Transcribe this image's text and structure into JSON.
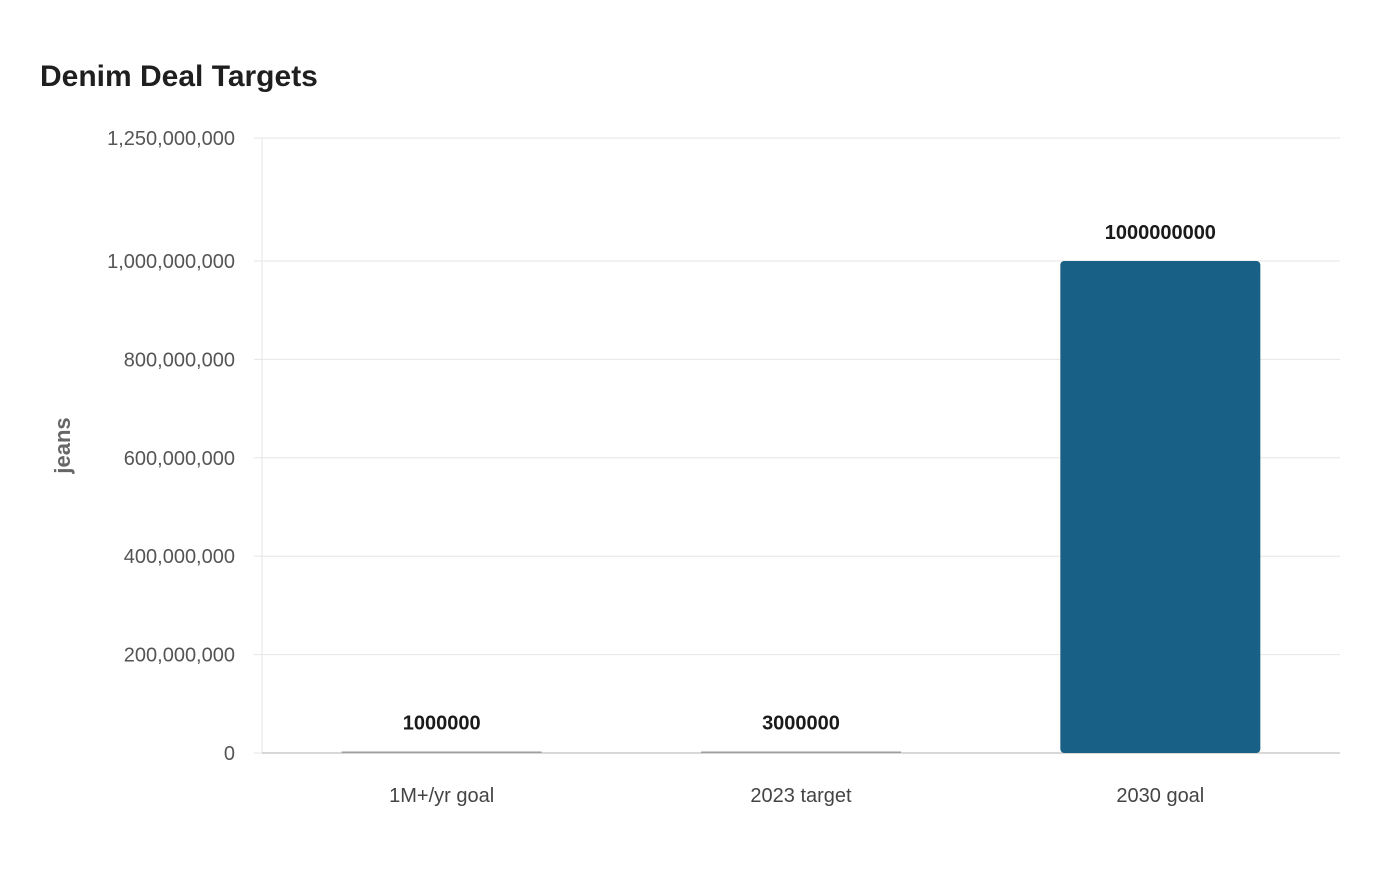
{
  "chart_data": {
    "type": "bar",
    "title": "Denim Deal Targets",
    "xlabel": "",
    "ylabel": "jeans",
    "categories": [
      "1M+/yr goal",
      "2023 target",
      "2030 goal"
    ],
    "values": [
      1000000,
      3000000,
      1000000000
    ],
    "data_labels": [
      "1000000",
      "3000000",
      "1000000000"
    ],
    "ylim": [
      0,
      1250000000
    ],
    "yticks": [
      0,
      200000000,
      400000000,
      600000000,
      800000000,
      1000000000,
      1250000000
    ],
    "ytick_labels": [
      "0",
      "200,000,000",
      "400,000,000",
      "600,000,000",
      "800,000,000",
      "1,000,000,000",
      "1,250,000,000"
    ],
    "grid": true,
    "legend": "none",
    "colors": {
      "bar": "#186086",
      "bar_small": "#9e9e9e",
      "grid": "#e6e6e6",
      "axis": "#cccccc"
    }
  }
}
